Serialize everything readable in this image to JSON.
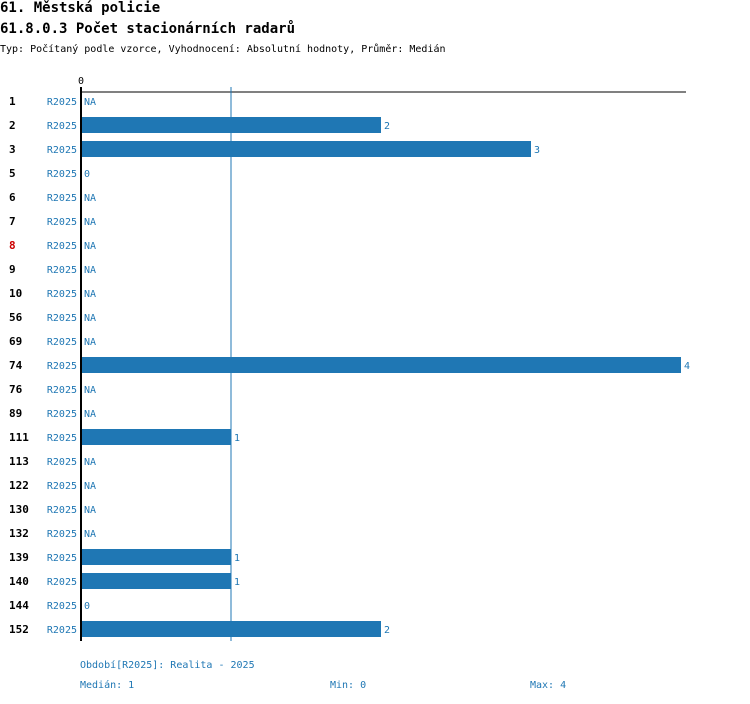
{
  "header": {
    "title": "61. Městská policie",
    "subtitle": "61.8.0.3 Počet stacionárních radarů",
    "meta": "Typ: Počítaný podle vzorce, Vyhodnocení: Absolutní hodnoty, Průměr: Medián"
  },
  "chart_data": {
    "type": "bar",
    "orientation": "horizontal",
    "axis_top_tick": "0",
    "series_label": "R2025",
    "missing_label": "NA",
    "median_line": 1,
    "xlim": [
      0,
      4
    ],
    "bar_color": "#1f77b4",
    "text_color": "#1f77b4",
    "highlight_color": "#cc0000",
    "rows": [
      {
        "id": "1",
        "series": "R2025",
        "value": null,
        "label": "NA",
        "highlight": false
      },
      {
        "id": "2",
        "series": "R2025",
        "value": 2,
        "label": "2",
        "highlight": false
      },
      {
        "id": "3",
        "series": "R2025",
        "value": 3,
        "label": "3",
        "highlight": false
      },
      {
        "id": "5",
        "series": "R2025",
        "value": 0,
        "label": "0",
        "highlight": false
      },
      {
        "id": "6",
        "series": "R2025",
        "value": null,
        "label": "NA",
        "highlight": false
      },
      {
        "id": "7",
        "series": "R2025",
        "value": null,
        "label": "NA",
        "highlight": false
      },
      {
        "id": "8",
        "series": "R2025",
        "value": null,
        "label": "NA",
        "highlight": true
      },
      {
        "id": "9",
        "series": "R2025",
        "value": null,
        "label": "NA",
        "highlight": false
      },
      {
        "id": "10",
        "series": "R2025",
        "value": null,
        "label": "NA",
        "highlight": false
      },
      {
        "id": "56",
        "series": "R2025",
        "value": null,
        "label": "NA",
        "highlight": false
      },
      {
        "id": "69",
        "series": "R2025",
        "value": null,
        "label": "NA",
        "highlight": false
      },
      {
        "id": "74",
        "series": "R2025",
        "value": 4,
        "label": "4",
        "highlight": false
      },
      {
        "id": "76",
        "series": "R2025",
        "value": null,
        "label": "NA",
        "highlight": false
      },
      {
        "id": "89",
        "series": "R2025",
        "value": null,
        "label": "NA",
        "highlight": false
      },
      {
        "id": "111",
        "series": "R2025",
        "value": 1,
        "label": "1",
        "highlight": false
      },
      {
        "id": "113",
        "series": "R2025",
        "value": null,
        "label": "NA",
        "highlight": false
      },
      {
        "id": "122",
        "series": "R2025",
        "value": null,
        "label": "NA",
        "highlight": false
      },
      {
        "id": "130",
        "series": "R2025",
        "value": null,
        "label": "NA",
        "highlight": false
      },
      {
        "id": "132",
        "series": "R2025",
        "value": null,
        "label": "NA",
        "highlight": false
      },
      {
        "id": "139",
        "series": "R2025",
        "value": 1,
        "label": "1",
        "highlight": false
      },
      {
        "id": "140",
        "series": "R2025",
        "value": 1,
        "label": "1",
        "highlight": false
      },
      {
        "id": "144",
        "series": "R2025",
        "value": 0,
        "label": "0",
        "highlight": false
      },
      {
        "id": "152",
        "series": "R2025",
        "value": 2,
        "label": "2",
        "highlight": false
      }
    ]
  },
  "footer": {
    "period": "Období[R2025]: Realita - 2025",
    "median": "Medián: 1",
    "min": "Min: 0",
    "max": "Max: 4"
  }
}
